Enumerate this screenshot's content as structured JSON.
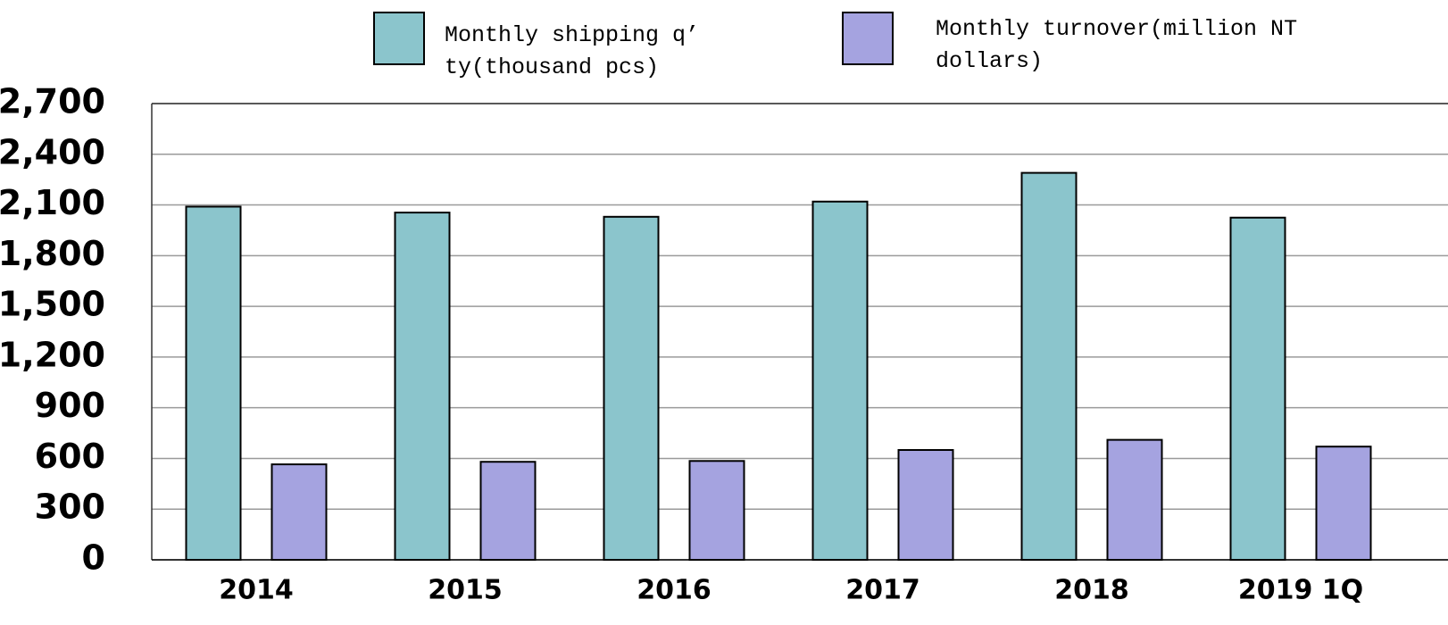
{
  "chart_data": {
    "type": "bar",
    "categories": [
      "2014",
      "2015",
      "2016",
      "2017",
      "2018",
      "2019 1Q"
    ],
    "series": [
      {
        "name": "Monthly shipping q’ ty(thousand pcs)",
        "color": "#8bc5cc",
        "values": [
          2090,
          2055,
          2030,
          2120,
          2290,
          2025
        ]
      },
      {
        "name": "Monthly turnover(million NT dollars)",
        "color": "#a5a3e0",
        "values": [
          565,
          580,
          585,
          650,
          710,
          670
        ]
      }
    ],
    "ylim": [
      0,
      2700
    ],
    "yticks": [
      0,
      300,
      600,
      900,
      {
        "value": 1200,
        "label": "1,200"
      },
      {
        "value": 1500,
        "label": "1,500"
      },
      {
        "value": 1800,
        "label": "1,800"
      },
      {
        "value": 2100,
        "label": "2,100"
      },
      {
        "value": 2400,
        "label": "2,400"
      },
      {
        "value": 2700,
        "label": "2,700"
      }
    ],
    "grid": true,
    "legend": "top"
  }
}
